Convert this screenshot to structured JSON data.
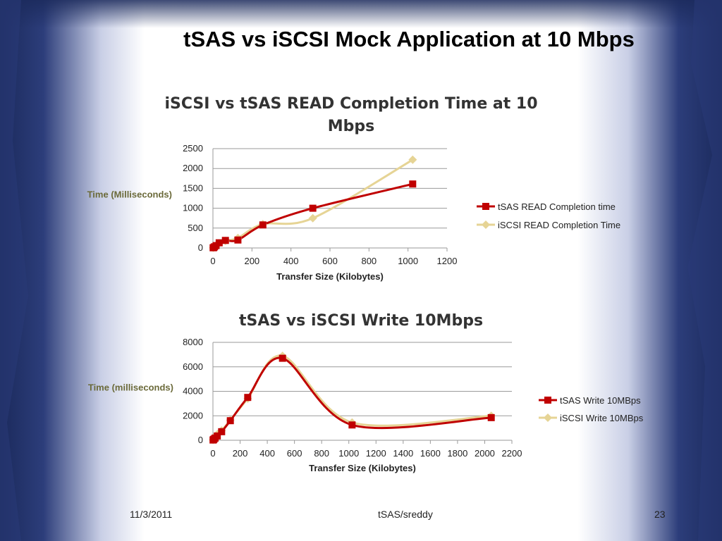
{
  "slide": {
    "title": "tSAS vs iSCSI Mock Application at 10 Mbps",
    "footer_date": "11/3/2011",
    "footer_author": "tSAS/sreddy",
    "page_number": "23"
  },
  "colors": {
    "series_a": "#c00000",
    "series_b": "#e6d495",
    "gridline": "#9a9a9a",
    "background_dark": "#1e2f63",
    "background_light": "#ffffff"
  },
  "chart_data": [
    {
      "type": "scatter",
      "title_lines": [
        "iSCSI vs tSAS READ Completion Time at 10",
        "Mbps"
      ],
      "xlabel": "Transfer Size (Kilobytes)",
      "ylabel": "Time (Milliseconds)",
      "xlim": [
        0,
        1200
      ],
      "ylim": [
        0,
        2500
      ],
      "xticks": [
        "0",
        "200",
        "400",
        "600",
        "800",
        "1000",
        "1200"
      ],
      "yticks": [
        "0",
        "500",
        "1000",
        "1500",
        "2000",
        "2500"
      ],
      "grid": true,
      "smooth": true,
      "legend_position": "right",
      "series": [
        {
          "name": "tSAS READ Completion time",
          "marker": "square",
          "x": [
            1,
            4,
            8,
            16,
            32,
            64,
            128,
            256,
            512,
            1024
          ],
          "y": [
            5,
            10,
            30,
            60,
            130,
            190,
            200,
            580,
            1000,
            1610
          ]
        },
        {
          "name": "iSCSI READ Completion Time",
          "marker": "diamond",
          "x": [
            1,
            4,
            8,
            16,
            32,
            64,
            128,
            256,
            512,
            1024
          ],
          "y": [
            5,
            10,
            30,
            60,
            120,
            180,
            250,
            600,
            750,
            2220
          ]
        }
      ]
    },
    {
      "type": "scatter",
      "title_lines": [
        "tSAS vs iSCSI Write 10Mbps"
      ],
      "xlabel": "Transfer Size (Kilobytes)",
      "ylabel": "Time (milliseconds)",
      "xlim": [
        0,
        2200
      ],
      "ylim": [
        0,
        8000
      ],
      "xticks": [
        "0",
        "200",
        "400",
        "600",
        "800",
        "1000",
        "1200",
        "1400",
        "1600",
        "1800",
        "2000",
        "2200"
      ],
      "yticks": [
        "0",
        "2000",
        "4000",
        "6000",
        "8000"
      ],
      "grid": true,
      "smooth": true,
      "legend_position": "right",
      "series": [
        {
          "name": "tSAS Write 10MBps",
          "marker": "square",
          "x": [
            1,
            4,
            8,
            16,
            32,
            64,
            128,
            256,
            512,
            1024,
            2048
          ],
          "y": [
            20,
            50,
            100,
            180,
            350,
            700,
            1600,
            3500,
            6700,
            1250,
            1850
          ]
        },
        {
          "name": "iSCSI Write 10MBps",
          "marker": "diamond",
          "x": [
            1,
            4,
            8,
            16,
            32,
            64,
            128,
            256,
            512,
            1024,
            2048
          ],
          "y": [
            30,
            70,
            150,
            300,
            500,
            800,
            1650,
            3400,
            6900,
            1450,
            2000
          ]
        }
      ]
    }
  ]
}
